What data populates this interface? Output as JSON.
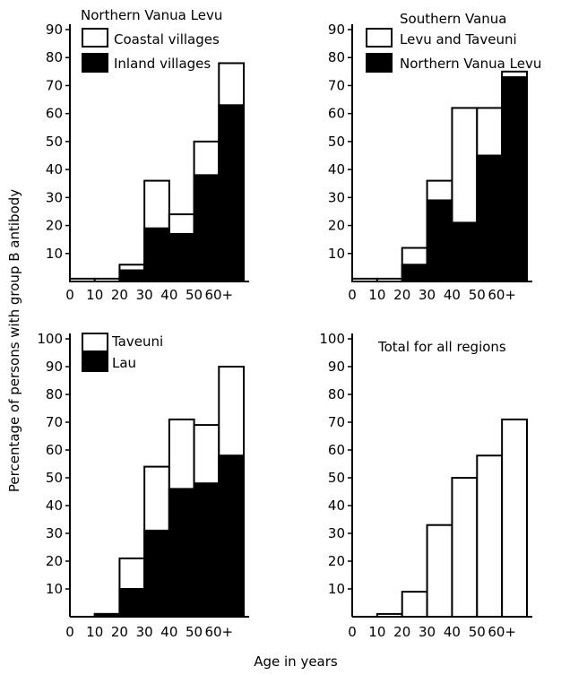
{
  "ylabel": "Percentage of persons with group B antibody",
  "xlabel": "Age in years",
  "chart_data": [
    {
      "type": "bar",
      "title": "Northern Vanua Levu",
      "categories": [
        "0",
        "10",
        "20",
        "30",
        "40",
        "50",
        "60+"
      ],
      "ylim": [
        0,
        90
      ],
      "yticks": [
        10,
        20,
        30,
        40,
        50,
        60,
        70,
        80,
        90
      ],
      "series": [
        {
          "name": "Coastal villages",
          "fill": "#ffffff",
          "values": [
            1,
            1,
            6,
            36,
            24,
            50,
            78
          ]
        },
        {
          "name": "Inland villages",
          "fill": "#000000",
          "values": [
            0,
            0,
            4,
            19,
            17,
            38,
            63
          ]
        }
      ]
    },
    {
      "type": "bar",
      "title": "",
      "categories": [
        "0",
        "10",
        "20",
        "30",
        "40",
        "50",
        "60+"
      ],
      "ylim": [
        0,
        90
      ],
      "yticks": [
        10,
        20,
        30,
        40,
        50,
        60,
        70,
        80,
        90
      ],
      "series": [
        {
          "name": "Southern Vanua Levu and Taveuni",
          "legend_lines": [
            "Southern Vanua",
            "Levu and Taveuni"
          ],
          "fill": "#ffffff",
          "values": [
            1,
            1,
            12,
            36,
            62,
            62,
            75
          ]
        },
        {
          "name": "Northern Vanua Levu",
          "fill": "#000000",
          "values": [
            0,
            0,
            6,
            29,
            21,
            45,
            73
          ]
        }
      ]
    },
    {
      "type": "bar",
      "title": "",
      "categories": [
        "0",
        "10",
        "20",
        "30",
        "40",
        "50",
        "60+"
      ],
      "ylim": [
        0,
        100
      ],
      "yticks": [
        10,
        20,
        30,
        40,
        50,
        60,
        70,
        80,
        90,
        100
      ],
      "series": [
        {
          "name": "Taveuni",
          "fill": "#ffffff",
          "values": [
            0,
            1,
            21,
            54,
            71,
            69,
            90
          ]
        },
        {
          "name": "Lau",
          "fill": "#000000",
          "values": [
            0,
            1,
            10,
            31,
            46,
            48,
            58
          ]
        }
      ]
    },
    {
      "type": "bar",
      "title": "Total for all regions",
      "categories": [
        "0",
        "10",
        "20",
        "30",
        "40",
        "50",
        "60+"
      ],
      "ylim": [
        0,
        100
      ],
      "yticks": [
        10,
        20,
        30,
        40,
        50,
        60,
        70,
        80,
        90,
        100
      ],
      "series": [
        {
          "name": "",
          "fill": "#ffffff",
          "values": [
            0,
            1,
            9,
            33,
            50,
            58,
            71
          ]
        }
      ]
    }
  ]
}
